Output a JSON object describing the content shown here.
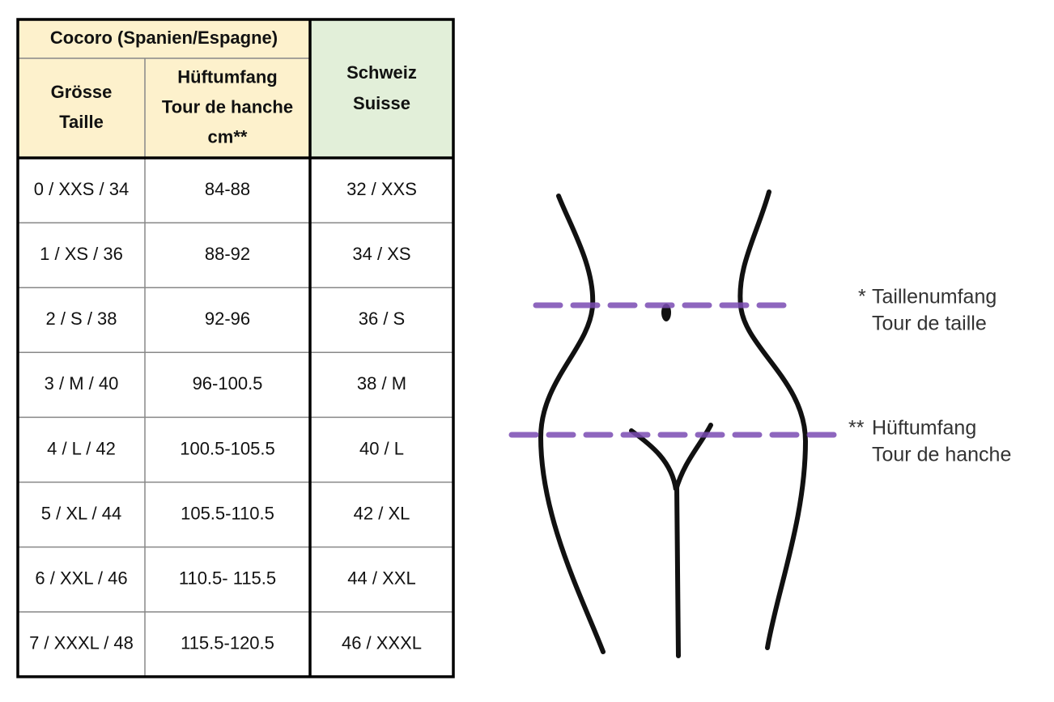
{
  "table": {
    "group_header": "Cocoro (Spanien/Espagne)",
    "column_headers": [
      [
        "Grösse",
        "Taille"
      ],
      [
        "Hüftumfang",
        "Tour de hanche",
        "cm**"
      ]
    ],
    "side_header": [
      "Schweiz",
      "Suisse"
    ],
    "rows": [
      [
        "0 / XXS / 34",
        "84-88",
        "32 / XXS"
      ],
      [
        "1 / XS / 36",
        "88-92",
        "34 / XS"
      ],
      [
        "2 / S / 38",
        "92-96",
        "36 / S"
      ],
      [
        "3 / M / 40",
        "96-100.5",
        "38 / M"
      ],
      [
        "4 / L / 42",
        "100.5-105.5",
        "40 / L"
      ],
      [
        "5 / XL / 44",
        "105.5-110.5",
        "42 / XL"
      ],
      [
        "6 / XXL / 46",
        "110.5- 115.5",
        "44 / XXL"
      ],
      [
        "7 / XXXL / 48",
        "115.5-120.5",
        "46 / XXXL"
      ]
    ]
  },
  "figure": {
    "waist_label": {
      "marker": "*",
      "lines": [
        "Taillenumfang",
        "Tour de taille"
      ]
    },
    "hip_label": {
      "marker": "**",
      "lines": [
        "Hüftumfang",
        "Tour de hanche"
      ]
    }
  }
}
